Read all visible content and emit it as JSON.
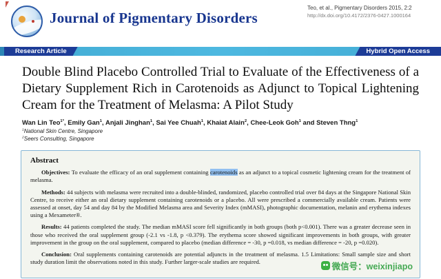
{
  "header": {
    "journal_title": "Journal of Pigmentary Disorders",
    "citation_line1": "Teo, et al., Pigmentary Disorders 2015, 2:2",
    "citation_line2": "http://dx.doi.org/10.4172/2376-0427.1000164"
  },
  "banner": {
    "left_badge": "Research Article",
    "right_badge": "Hybrid Open Access"
  },
  "article": {
    "title": "Double Blind Placebo Controlled Trial to Evaluate of the Effectiveness of a Dietary Supplement Rich in Carotenoids as Adjunct to Topical Lightening Cream for the Treatment of Melasma: A Pilot Study",
    "authors": [
      {
        "pre": "",
        "name": "Wan Lin Teo",
        "sup": "1*"
      },
      {
        "pre": ", ",
        "name": "Emily Gan",
        "sup": "1"
      },
      {
        "pre": ", ",
        "name": "Anjali Jinghan",
        "sup": "1"
      },
      {
        "pre": ", ",
        "name": "Sai Yee Chuah",
        "sup": "1"
      },
      {
        "pre": ", ",
        "name": "Khaiat Alain",
        "sup": "2"
      },
      {
        "pre": ", ",
        "name": "Chee-Leok Goh",
        "sup": "1"
      },
      {
        "pre": " and ",
        "name": "Steven Thng",
        "sup": "1"
      }
    ],
    "affiliations": [
      {
        "sup": "1",
        "text": "National Skin Centre, Singapore"
      },
      {
        "sup": "2",
        "text": "Seers Consulting, Singapore"
      }
    ]
  },
  "abstract": {
    "heading": "Abstract",
    "objectives": {
      "label": "Objectives:",
      "before_highlight": " To evaluate the efficacy of an oral supplement containing ",
      "highlight": "carotenoids",
      "after_highlight": " as an adjunct to a topical cosmetic lightening cream for the treatment of melasma."
    },
    "methods": {
      "label": "Methods:",
      "text": " 44 subjects with melasma were recruited into a double-blinded, randomized, placebo controlled trial over 84 days at the Singapore National Skin Centre, to receive either an oral dietary supplement containing carotenoids or a placebo. All were prescribed a commercially available cream. Patients were assessed at onset, day 54 and day 84 by the Modified Melasma area and Severity Index (mMASI), photographic documentation, melanin and erythema indexes using a Mexameter®."
    },
    "results": {
      "label": "Results:",
      "text": " 44 patients completed the study. The median mMASI score fell significantly in both groups (both p<0.001). There was a greater decrease seen in those who received the oral supplement group (-2.1 vs -1.8, p <0.379). The erythema score showed significant improvements in both groups, with greater improvement in the group on the oral supplement, compared to placebo (median difference = -30, p =0.018, vs median difference = -20, p =0.020)."
    },
    "conclusion": {
      "label": "Conclusion:",
      "text": " Oral supplements containing carotenoids are potential adjuncts in the treatment of melasma. 1.5 Limitations: Small sample size and short study duration limit the observations noted in this study. Further larger-scale studies are required."
    }
  },
  "watermark": {
    "text": "微信号：weixinjiapo"
  },
  "colors": {
    "accent_blue": "#18368f",
    "badge_navy": "#1d3c97",
    "banner_teal": "#4db8e0",
    "highlight_blue": "#92c0f0",
    "watermark_green": "#3cb043"
  }
}
